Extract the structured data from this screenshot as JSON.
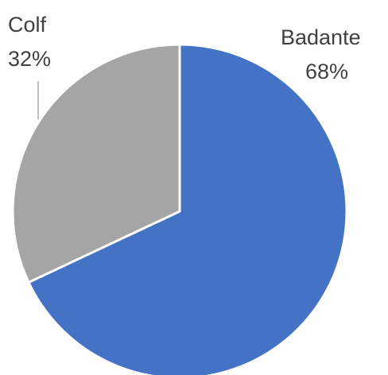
{
  "chart_data": {
    "type": "pie",
    "title": "",
    "slices": [
      {
        "label": "Badante",
        "percent_label": "68%",
        "value": 68,
        "color": "#4472C4"
      },
      {
        "label": "Colf",
        "percent_label": "32%",
        "value": 32,
        "color": "#A5A5A5"
      }
    ],
    "start_angle": "12 o'clock",
    "direction": "clockwise",
    "legend": "none",
    "data_labels": "outside, category name and percentage"
  }
}
